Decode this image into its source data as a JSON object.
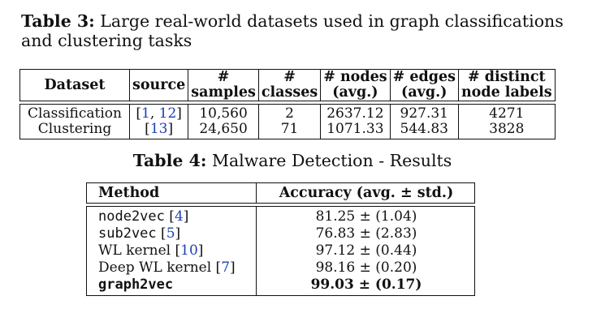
{
  "table3": {
    "caption_label": "Table 3:",
    "caption_text": "Large real-world datasets used in graph classifications and clustering tasks",
    "headers": {
      "dataset": "Dataset",
      "source": "source",
      "samples_top": "#",
      "samples_bottom": "samples",
      "classes_top": "#",
      "classes_bottom": "classes",
      "nodes_top": "# nodes",
      "nodes_bottom": "(avg.)",
      "edges_top": "# edges",
      "edges_bottom": "(avg.)",
      "labels_top": "# distinct",
      "labels_bottom": "node labels"
    },
    "rows": [
      {
        "dataset": "Classification",
        "source_open": "[",
        "source_ref1": "1",
        "source_sep": ", ",
        "source_ref2": "12",
        "source_close": "]",
        "samples": "10,560",
        "classes": "2",
        "nodes": "2637.12",
        "edges": "927.31",
        "labels": "4271"
      },
      {
        "dataset": "Clustering",
        "source_open": "[",
        "source_ref1": "13",
        "source_close": "]",
        "samples": "24,650",
        "classes": "71",
        "nodes": "1071.33",
        "edges": "544.83",
        "labels": "3828"
      }
    ]
  },
  "table4": {
    "caption_label": "Table 4:",
    "caption_text": "Malware Detection - Results",
    "headers": {
      "method": "Method",
      "accuracy": "Accuracy (avg. ± std.)"
    },
    "rows": [
      {
        "method": "node2vec",
        "ref": "4",
        "accuracy": "81.25 ± (1.04)"
      },
      {
        "method": "sub2vec",
        "ref": "5",
        "accuracy": "76.83 ± (2.83)"
      },
      {
        "method": "WL kernel",
        "ref": "10",
        "accuracy": "97.12 ± (0.44)"
      },
      {
        "method": "Deep WL kernel",
        "ref": "7",
        "accuracy": "98.16 ± (0.20)"
      },
      {
        "method": "graph2vec",
        "accuracy": "99.03 ± (0.17)"
      }
    ]
  }
}
